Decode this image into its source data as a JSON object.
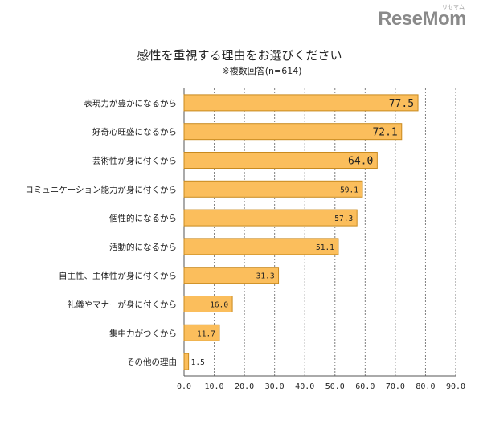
{
  "brand": {
    "logo_text": "ReseMom",
    "logo_ruby": "リセマム"
  },
  "chart_data": {
    "type": "bar",
    "orientation": "horizontal",
    "title": "感性を重視する理由をお選びください",
    "subtitle": "※複数回答(n=614)",
    "categories": [
      "表現力が豊かになるから",
      "好奇心旺盛になるから",
      "芸術性が身に付くから",
      "コミュニケーション能力が身に付くから",
      "個性的になるから",
      "活動的になるから",
      "自主性、主体性が身に付くから",
      "礼儀やマナーが身に付くから",
      "集中力がつくから",
      "その他の理由"
    ],
    "values": [
      77.5,
      72.1,
      64.0,
      59.1,
      57.3,
      51.1,
      31.3,
      16.0,
      11.7,
      1.5
    ],
    "value_labels": [
      "77.5",
      "72.1",
      "64.0",
      "59.1",
      "57.3",
      "51.1",
      "31.3",
      "16.0",
      "11.7",
      "1.5"
    ],
    "xlim": [
      0,
      90
    ],
    "x_ticks": [
      "0.0",
      "10.0",
      "20.0",
      "30.0",
      "40.0",
      "50.0",
      "60.0",
      "70.0",
      "80.0",
      "90.0"
    ],
    "grid": true,
    "colors": {
      "bar_fill": "#fbbe5c",
      "bar_stroke": "#c98a1e",
      "grid": "#7f7f7f",
      "axis": "#555555"
    }
  }
}
